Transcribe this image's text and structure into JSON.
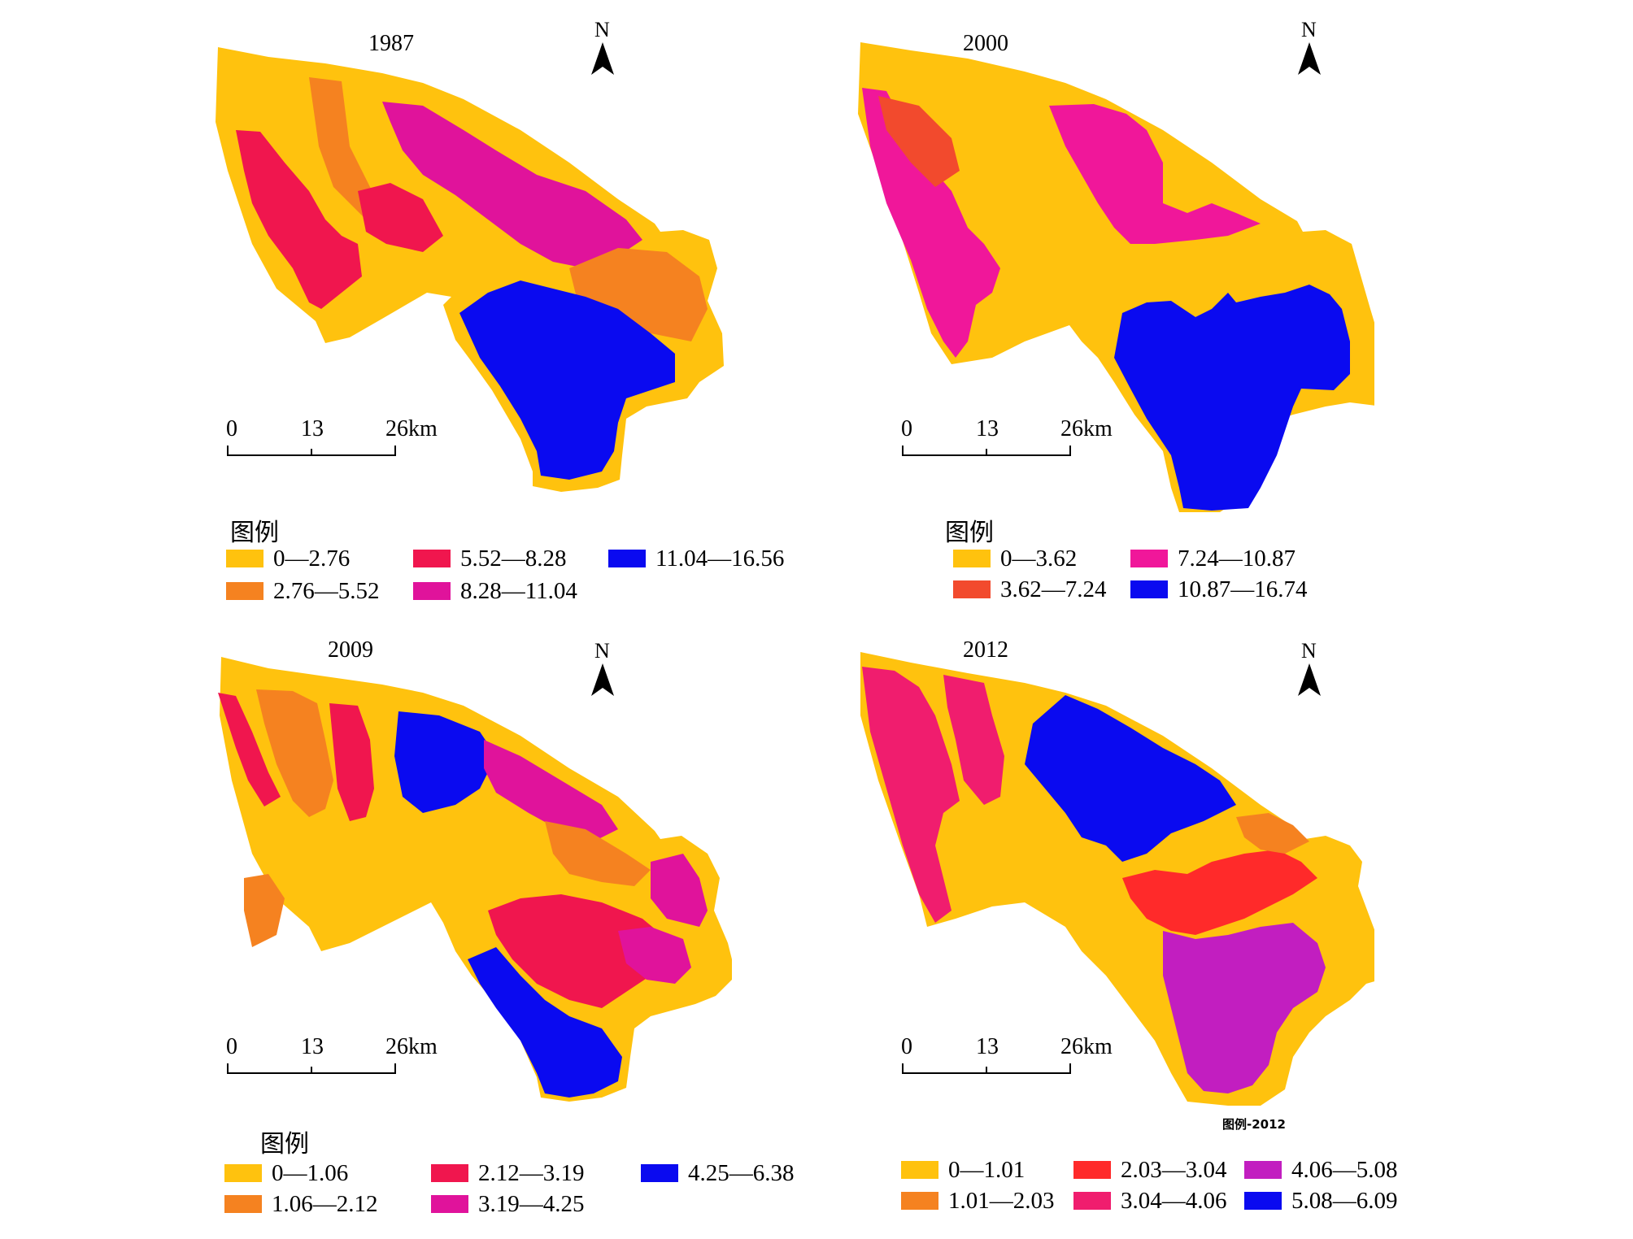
{
  "colors": {
    "c1": "#FFC20E",
    "c2": "#F58220",
    "c3": "#F0164E",
    "c4": "#E0139B",
    "c5": "#0A0AF0",
    "c6": "#F24A2D",
    "c7": "#F0179A",
    "c8": "#FF2A2A",
    "c9": "#F01D6E",
    "c10": "#C21EC0"
  },
  "north_label": "N",
  "scale": {
    "t0": "0",
    "t1": "13",
    "t2": "26km"
  },
  "legend_title": "图例",
  "panels": [
    {
      "year": "1987",
      "legend": [
        {
          "label": "0—2.76",
          "color": "#FFC20E"
        },
        {
          "label": "2.76—5.52",
          "color": "#F58220"
        },
        {
          "label": "5.52—8.28",
          "color": "#F0164E"
        },
        {
          "label": "8.28—11.04",
          "color": "#E0139B"
        },
        {
          "label": "11.04—16.56",
          "color": "#0A0AF0"
        }
      ]
    },
    {
      "year": "2000",
      "legend": [
        {
          "label": "0—3.62",
          "color": "#FFC20E"
        },
        {
          "label": "3.62—7.24",
          "color": "#F24A2D"
        },
        {
          "label": "7.24—10.87",
          "color": "#F0179A"
        },
        {
          "label": "10.87—16.74",
          "color": "#0A0AF0"
        }
      ]
    },
    {
      "year": "2009",
      "legend": [
        {
          "label": "0—1.06",
          "color": "#FFC20E"
        },
        {
          "label": "1.06—2.12",
          "color": "#F58220"
        },
        {
          "label": "2.12—3.19",
          "color": "#F0164E"
        },
        {
          "label": "3.19—4.25",
          "color": "#E0139B"
        },
        {
          "label": "4.25—6.38",
          "color": "#0A0AF0"
        }
      ]
    },
    {
      "year": "2012",
      "note": "图例-2012",
      "legend": [
        {
          "label": "0—1.01",
          "color": "#FFC20E"
        },
        {
          "label": "1.01—2.03",
          "color": "#F58220"
        },
        {
          "label": "2.03—3.04",
          "color": "#FF2A2A"
        },
        {
          "label": "3.04—4.06",
          "color": "#F01D6E"
        },
        {
          "label": "4.06—5.08",
          "color": "#C21EC0"
        },
        {
          "label": "5.08—6.09",
          "color": "#0A0AF0"
        }
      ]
    }
  ]
}
